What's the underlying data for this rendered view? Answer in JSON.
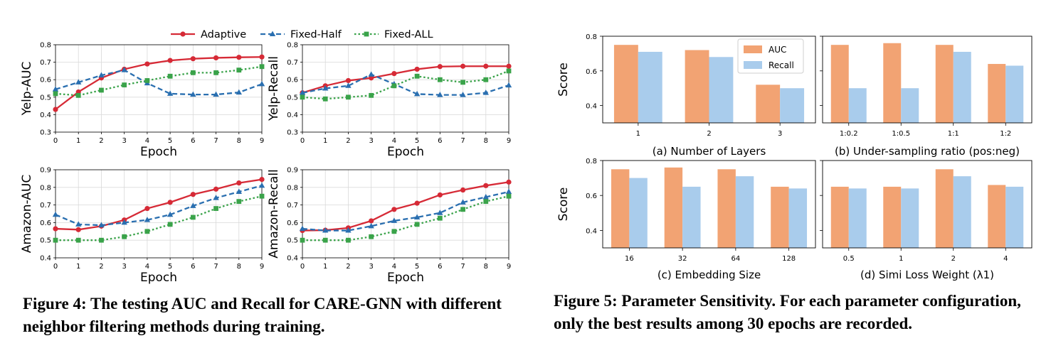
{
  "figure4": {
    "caption": "Figure 4: The testing AUC and Recall for CARE-GNN with different neighbor filtering methods during training.",
    "legend": [
      "Adaptive",
      "Fixed-Half",
      "Fixed-ALL"
    ],
    "colors": [
      "#d62a36",
      "#2a6fb0",
      "#3aa34a"
    ]
  },
  "figure5": {
    "caption": "Figure 5: Parameter Sensitivity. For each parameter configuration, only the best results among 30 epochs are recorded.",
    "legend": [
      "AUC",
      "Recall"
    ],
    "colors": [
      "#f2a373",
      "#a9ccec"
    ]
  },
  "chart_data": [
    {
      "type": "line",
      "xlabel": "Epoch",
      "ylabel": "Yelp-AUC",
      "x": [
        0,
        1,
        2,
        3,
        4,
        5,
        6,
        7,
        8,
        9
      ],
      "ylim": [
        0.3,
        0.8
      ],
      "yticks": [
        0.3,
        0.4,
        0.5,
        0.6,
        0.7,
        0.8
      ],
      "series": [
        {
          "name": "Adaptive",
          "values": [
            0.43,
            0.53,
            0.61,
            0.66,
            0.69,
            0.71,
            0.72,
            0.725,
            0.728,
            0.73
          ]
        },
        {
          "name": "Fixed-Half",
          "values": [
            0.545,
            0.585,
            0.625,
            0.655,
            0.58,
            0.52,
            0.515,
            0.515,
            0.527,
            0.575
          ]
        },
        {
          "name": "Fixed-ALL",
          "values": [
            0.52,
            0.51,
            0.54,
            0.57,
            0.595,
            0.62,
            0.64,
            0.64,
            0.655,
            0.675
          ]
        }
      ]
    },
    {
      "type": "line",
      "xlabel": "Epoch",
      "ylabel": "Yelp-Recall",
      "x": [
        0,
        1,
        2,
        3,
        4,
        5,
        6,
        7,
        8,
        9
      ],
      "ylim": [
        0.3,
        0.8
      ],
      "yticks": [
        0.3,
        0.4,
        0.5,
        0.6,
        0.7,
        0.8
      ],
      "series": [
        {
          "name": "Adaptive",
          "values": [
            0.525,
            0.565,
            0.595,
            0.61,
            0.635,
            0.66,
            0.675,
            0.677,
            0.677,
            0.677
          ]
        },
        {
          "name": "Fixed-Half",
          "values": [
            0.525,
            0.55,
            0.565,
            0.63,
            0.575,
            0.518,
            0.513,
            0.513,
            0.525,
            0.568
          ]
        },
        {
          "name": "Fixed-ALL",
          "values": [
            0.5,
            0.49,
            0.5,
            0.51,
            0.565,
            0.62,
            0.6,
            0.585,
            0.6,
            0.65
          ]
        }
      ]
    },
    {
      "type": "line",
      "xlabel": "Epoch",
      "ylabel": "Amazon-AUC",
      "x": [
        0,
        1,
        2,
        3,
        4,
        5,
        6,
        7,
        8,
        9
      ],
      "ylim": [
        0.4,
        0.9
      ],
      "yticks": [
        0.4,
        0.5,
        0.6,
        0.7,
        0.8,
        0.9
      ],
      "series": [
        {
          "name": "Adaptive",
          "values": [
            0.565,
            0.56,
            0.58,
            0.615,
            0.68,
            0.715,
            0.76,
            0.79,
            0.825,
            0.845
          ]
        },
        {
          "name": "Fixed-Half",
          "values": [
            0.645,
            0.59,
            0.585,
            0.6,
            0.615,
            0.645,
            0.695,
            0.74,
            0.775,
            0.81
          ]
        },
        {
          "name": "Fixed-ALL",
          "values": [
            0.5,
            0.5,
            0.5,
            0.52,
            0.55,
            0.59,
            0.63,
            0.68,
            0.72,
            0.75
          ]
        }
      ]
    },
    {
      "type": "line",
      "xlabel": "Epoch",
      "ylabel": "Amazon-Recall",
      "x": [
        0,
        1,
        2,
        3,
        4,
        5,
        6,
        7,
        8,
        9
      ],
      "ylim": [
        0.4,
        0.9
      ],
      "yticks": [
        0.4,
        0.5,
        0.6,
        0.7,
        0.8,
        0.9
      ],
      "series": [
        {
          "name": "Adaptive",
          "values": [
            0.555,
            0.557,
            0.57,
            0.61,
            0.675,
            0.71,
            0.757,
            0.785,
            0.81,
            0.83
          ]
        },
        {
          "name": "Fixed-Half",
          "values": [
            0.565,
            0.555,
            0.555,
            0.58,
            0.61,
            0.63,
            0.655,
            0.715,
            0.745,
            0.775
          ]
        },
        {
          "name": "Fixed-ALL",
          "values": [
            0.5,
            0.5,
            0.5,
            0.52,
            0.55,
            0.59,
            0.625,
            0.675,
            0.72,
            0.75
          ]
        }
      ]
    },
    {
      "type": "bar",
      "title": "(a) Number of Layers",
      "ylabel": "Score",
      "categories": [
        "1",
        "2",
        "3"
      ],
      "ylim": [
        0.3,
        0.8
      ],
      "yticks": [
        0.4,
        0.6,
        0.8
      ],
      "series": [
        {
          "name": "AUC",
          "values": [
            0.75,
            0.72,
            0.52
          ]
        },
        {
          "name": "Recall",
          "values": [
            0.71,
            0.68,
            0.5
          ]
        }
      ]
    },
    {
      "type": "bar",
      "title": "(b) Under-sampling ratio (pos:neg)",
      "categories": [
        "1:0.2",
        "1:0.5",
        "1:1",
        "1:2"
      ],
      "ylim": [
        0.3,
        0.8
      ],
      "yticks": [
        0.4,
        0.6,
        0.8
      ],
      "series": [
        {
          "name": "AUC",
          "values": [
            0.75,
            0.76,
            0.75,
            0.64
          ]
        },
        {
          "name": "Recall",
          "values": [
            0.5,
            0.5,
            0.71,
            0.63
          ]
        }
      ]
    },
    {
      "type": "bar",
      "title": "(c) Embedding Size",
      "ylabel": "Score",
      "categories": [
        "16",
        "32",
        "64",
        "128"
      ],
      "ylim": [
        0.3,
        0.8
      ],
      "yticks": [
        0.4,
        0.6,
        0.8
      ],
      "series": [
        {
          "name": "AUC",
          "values": [
            0.75,
            0.76,
            0.75,
            0.65
          ]
        },
        {
          "name": "Recall",
          "values": [
            0.7,
            0.65,
            0.71,
            0.64
          ]
        }
      ]
    },
    {
      "type": "bar",
      "title": "(d) Simi Loss Weight (λ1)",
      "categories": [
        "0.5",
        "1",
        "2",
        "4"
      ],
      "ylim": [
        0.3,
        0.8
      ],
      "yticks": [
        0.4,
        0.6,
        0.8
      ],
      "series": [
        {
          "name": "AUC",
          "values": [
            0.65,
            0.65,
            0.75,
            0.66
          ]
        },
        {
          "name": "Recall",
          "values": [
            0.64,
            0.64,
            0.71,
            0.65
          ]
        }
      ]
    }
  ]
}
